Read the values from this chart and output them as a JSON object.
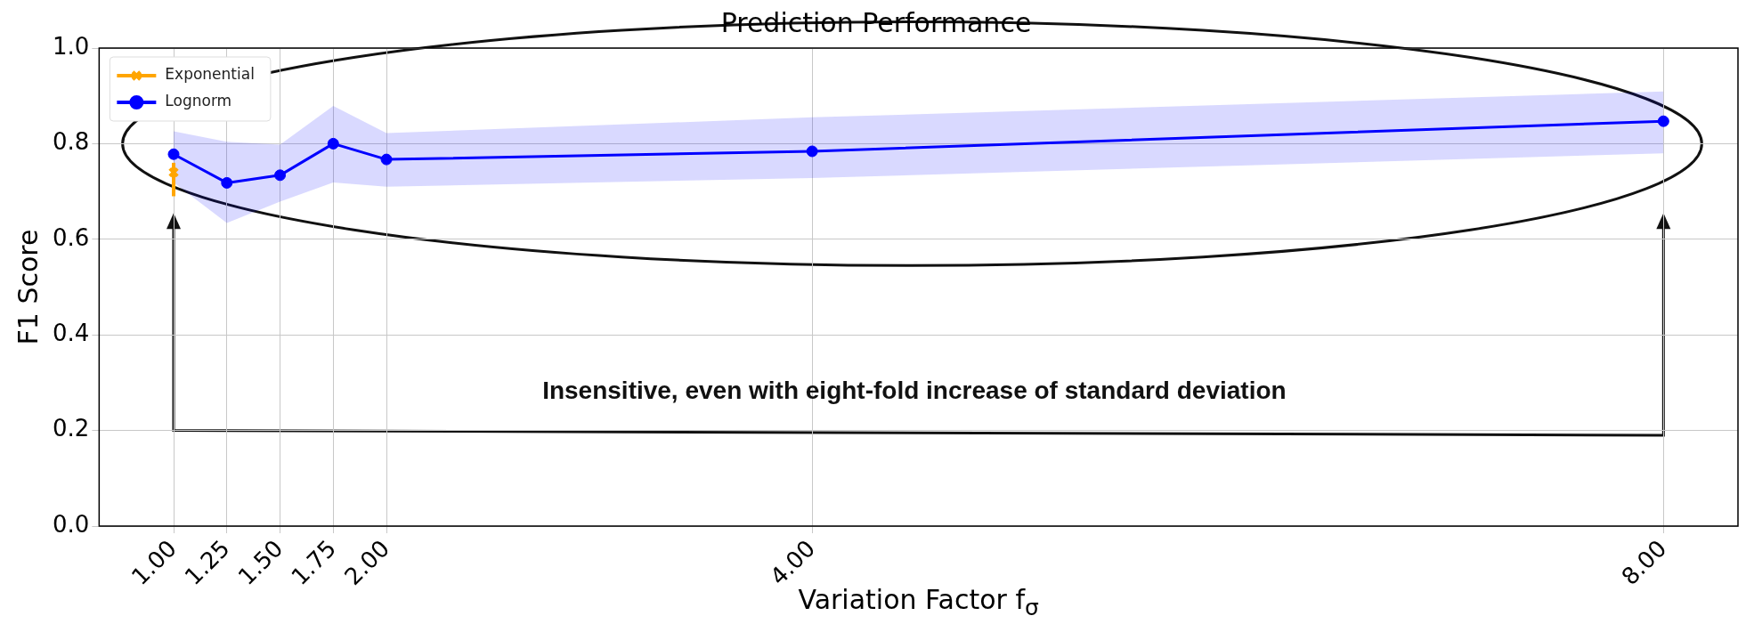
{
  "chart_data": {
    "type": "line",
    "title": "Prediction Performance",
    "xlabel": "Variation Factor f$_{σ}$",
    "ylabel": "F1 Score",
    "xlim": [
      0.65,
      8.35
    ],
    "xticks": [
      {
        "value": 1,
        "label": "1.00"
      },
      {
        "value": 1.25,
        "label": "1.25"
      },
      {
        "value": 1.5,
        "label": "1.50"
      },
      {
        "value": 1.75,
        "label": "1.75"
      },
      {
        "value": 2,
        "label": "2.00"
      },
      {
        "value": 4,
        "label": "4.00"
      },
      {
        "value": 8,
        "label": "8.00"
      }
    ],
    "ylim": [
      0,
      1
    ],
    "yticks": [
      {
        "value": 0,
        "label": "0.0"
      },
      0.2,
      0.4,
      0.6,
      0.8,
      {
        "value": 1,
        "label": "1.0"
      }
    ],
    "grid": true,
    "legend": "top left",
    "annotations": [
      "Insensitive, even with eight-fold increase of standard deviation"
    ],
    "series": [
      {
        "name": "Exponential",
        "color": "#ffa500",
        "marker": "cross",
        "x": [
          1
        ],
        "values": [
          0.74
        ],
        "errors": [
          [
            0.69,
            0.76
          ]
        ]
      },
      {
        "name": "Lognorm",
        "color": "#0000ff",
        "marker": "circle",
        "x": [
          1,
          1.25,
          1.5,
          1.75,
          2,
          4,
          8
        ],
        "values": [
          0.778,
          0.718,
          0.734,
          0.8,
          0.767,
          0.784,
          0.847
        ],
        "lower": [
          0.719,
          0.634,
          0.679,
          0.719,
          0.71,
          0.728,
          0.78
        ],
        "upper": [
          0.826,
          0.804,
          0.798,
          0.879,
          0.822,
          0.855,
          0.909
        ]
      }
    ]
  }
}
